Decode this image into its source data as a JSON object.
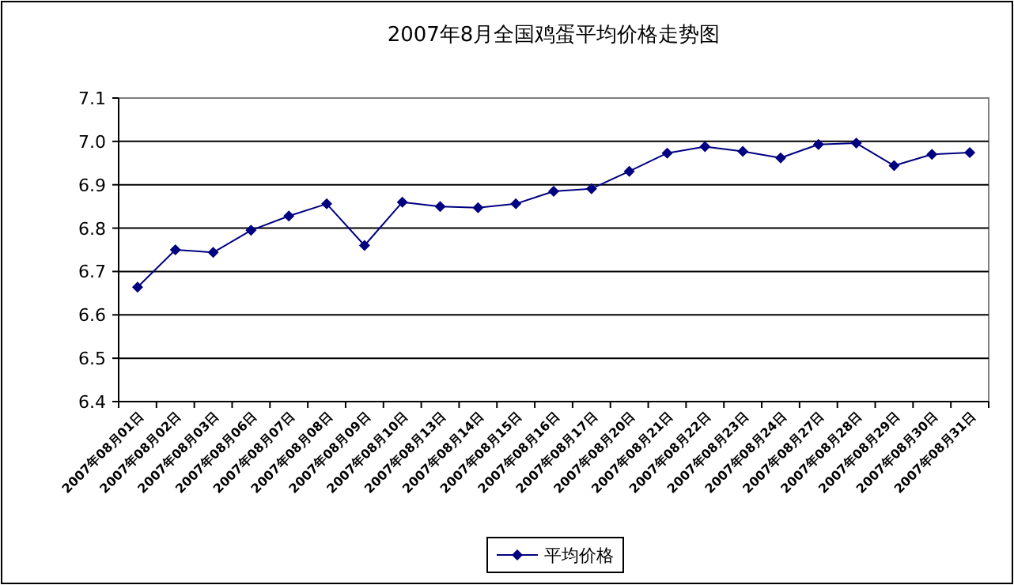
{
  "chart_data": {
    "type": "line",
    "title": "2007年8月全国鸡蛋平均价格走势图",
    "categories": [
      "2007年08月01日",
      "2007年08月02日",
      "2007年08月03日",
      "2007年08月06日",
      "2007年08月07日",
      "2007年08月08日",
      "2007年08月09日",
      "2007年08月10日",
      "2007年08月13日",
      "2007年08月14日",
      "2007年08月15日",
      "2007年08月16日",
      "2007年08月17日",
      "2007年08月20日",
      "2007年08月21日",
      "2007年08月22日",
      "2007年08月23日",
      "2007年08月24日",
      "2007年08月27日",
      "2007年08月28日",
      "2007年08月29日",
      "2007年08月30日",
      "2007年08月31日"
    ],
    "series": [
      {
        "name": "平均价格",
        "color": "#000080",
        "values": [
          6.664,
          6.75,
          6.744,
          6.795,
          6.828,
          6.856,
          6.76,
          6.86,
          6.85,
          6.847,
          6.856,
          6.885,
          6.891,
          6.931,
          6.973,
          6.988,
          6.977,
          6.962,
          6.993,
          6.996,
          6.944,
          6.97,
          6.974
        ]
      }
    ],
    "ylim": [
      6.4,
      7.1
    ],
    "yticks": [
      {
        "value": 6.4,
        "label": "6.4"
      },
      {
        "value": 6.5,
        "label": "6.5"
      },
      {
        "value": 6.6,
        "label": "6.6"
      },
      {
        "value": 6.7,
        "label": "6.7"
      },
      {
        "value": 6.8,
        "label": "6.8"
      },
      {
        "value": 6.9,
        "label": "6.9"
      },
      {
        "value": 7,
        "label": "7.0"
      },
      {
        "value": 7.1,
        "label": "7.1"
      }
    ],
    "grid": "y",
    "marker": "diamond",
    "line_style": "solid",
    "legend": "bottom"
  }
}
